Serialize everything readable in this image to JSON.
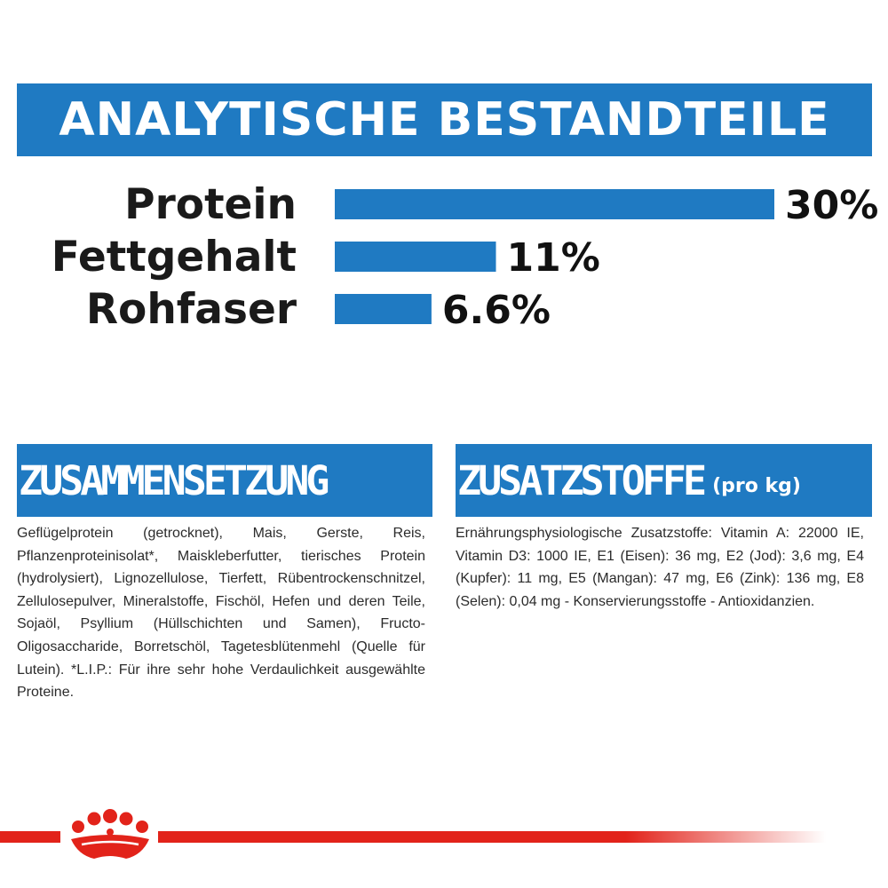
{
  "header": {
    "title": "ANALYTISCHE BESTANDTEILE"
  },
  "chart_data": {
    "type": "bar",
    "orientation": "horizontal",
    "categories": [
      "Protein",
      "Fettgehalt",
      "Rohfaser"
    ],
    "values": [
      30,
      11,
      6.6
    ],
    "value_labels": [
      "30%",
      "11%",
      "6.6%"
    ],
    "xlim": [
      0,
      30
    ],
    "grid": false,
    "title": "",
    "xlabel": "",
    "ylabel": ""
  },
  "composition": {
    "title": "ZUSAMMENSETZUNG",
    "text": "Geflügelprotein (getrocknet), Mais, Gerste, Reis, Pflanzenproteinisolat*, Maiskleberfutter, tierisches Protein (hydrolysiert), Lignozellulose, Tierfett, Rübentrockenschnitzel, Zellulosepulver, Mineralstoffe, Fischöl, Hefen und deren Teile, Sojaöl, Psyllium (Hüllschichten und Samen), Fructo-Oligosaccharide, Borretschöl, Tagetesblütenmehl (Quelle für Lutein). *L.I.P.: Für ihre sehr hohe Verdaulichkeit ausgewählte Proteine."
  },
  "additives": {
    "title": "ZUSATZSTOFFE",
    "subtitle": "(pro kg)",
    "text": "Ernährungsphysiologische Zusatzstoffe: Vitamin A: 22000 IE, Vitamin D3: 1000 IE, E1 (Eisen): 36 mg, E2 (Jod): 3,6 mg, E4 (Kupfer): 11 mg, E5 (Mangan): 47 mg, E6 (Zink): 136 mg, E8 (Selen): 0,04 mg - Konservierungsstoffe - Antioxidanzien."
  },
  "colors": {
    "brand_blue": "#1f7ac2",
    "brand_red": "#e2231a"
  },
  "icons": {
    "logo": "crown-icon"
  }
}
